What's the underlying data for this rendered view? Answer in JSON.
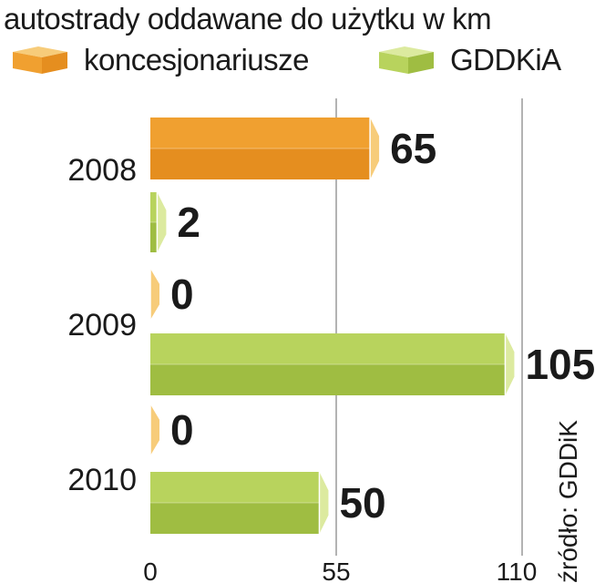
{
  "chart_data": {
    "type": "bar",
    "orientation": "horizontal",
    "title": "autostrady oddawane do użytku w km",
    "categories": [
      "2008",
      "2009",
      "2010"
    ],
    "series": [
      {
        "name": "koncesjonariusze",
        "values": [
          65,
          0,
          0
        ],
        "color": "#f0a030",
        "color_dark": "#e58e1f",
        "color_side": "#f7cc7a"
      },
      {
        "name": "GDDKiA",
        "values": [
          2,
          105,
          50
        ],
        "color": "#b8d35d",
        "color_dark": "#9fbd42",
        "color_side": "#dcea9f"
      }
    ],
    "bar_order": [
      {
        "category": 0,
        "series": 0
      },
      {
        "category": 0,
        "series": 1
      },
      {
        "category": 1,
        "series": 0
      },
      {
        "category": 1,
        "series": 1
      },
      {
        "category": 2,
        "series": 0
      },
      {
        "category": 2,
        "series": 1
      }
    ],
    "xlim": [
      0,
      110
    ],
    "xticks": [
      "0",
      "55",
      "110"
    ],
    "grid": true,
    "legend_position": "top",
    "source": "źródło: GDDiK"
  }
}
